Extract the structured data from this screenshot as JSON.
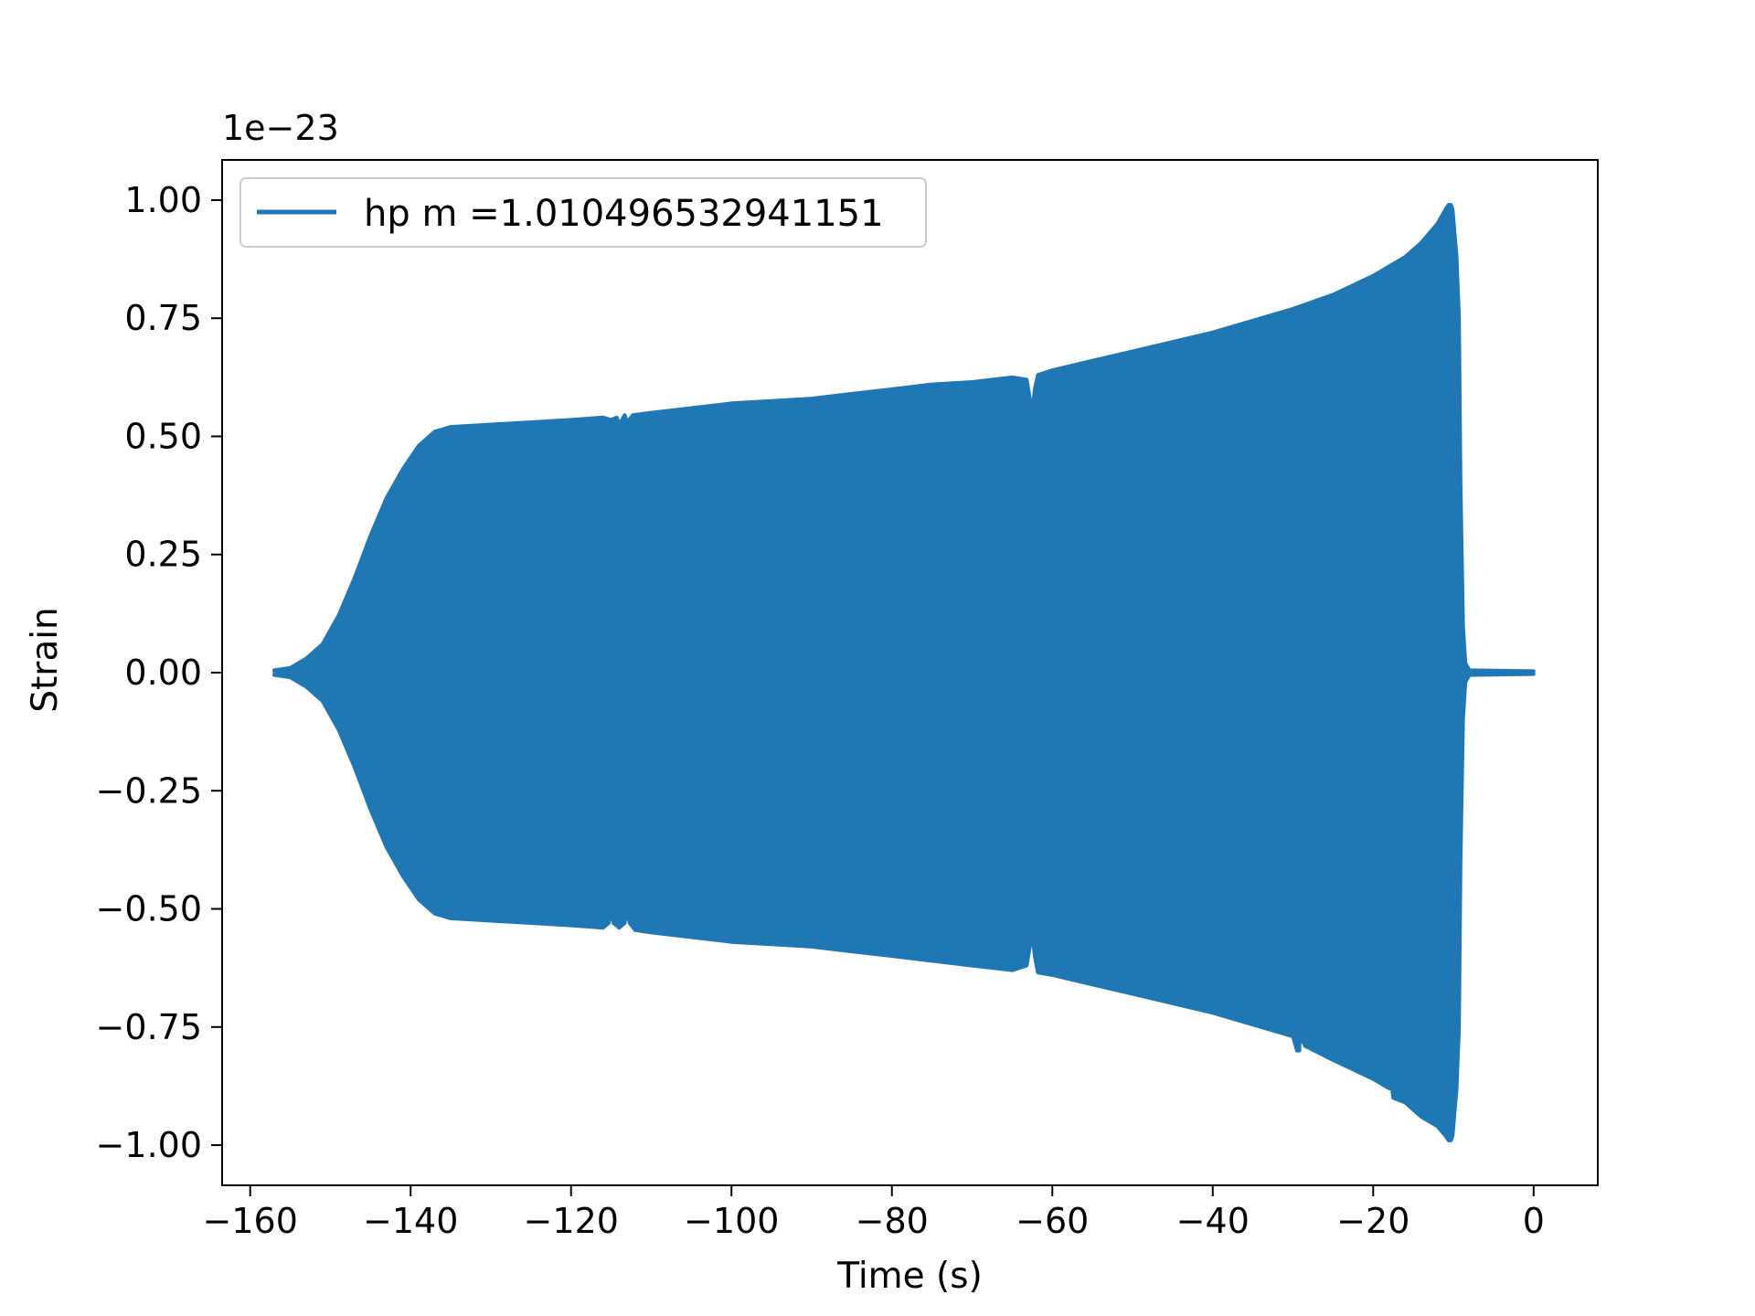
{
  "chart_data": {
    "type": "line",
    "title": "",
    "xlabel": "Time (s)",
    "ylabel": "Strain",
    "y_offset_label": "1e−23",
    "y_scale_factor": 1e-23,
    "xlim": [
      -163.5,
      8
    ],
    "ylim": [
      -1.085,
      1.085
    ],
    "x_ticks": [
      {
        "value": -160,
        "label": "−160"
      },
      {
        "value": -140,
        "label": "−140"
      },
      {
        "value": -120,
        "label": "−120"
      },
      {
        "value": -100,
        "label": "−100"
      },
      {
        "value": -80,
        "label": "−80"
      },
      {
        "value": -60,
        "label": "−60"
      },
      {
        "value": -40,
        "label": "−40"
      },
      {
        "value": -20,
        "label": "−20"
      },
      {
        "value": 0,
        "label": "0"
      }
    ],
    "y_ticks": [
      {
        "value": 1.0,
        "label": "1.00"
      },
      {
        "value": 0.75,
        "label": "0.75"
      },
      {
        "value": 0.5,
        "label": "0.50"
      },
      {
        "value": 0.25,
        "label": "0.25"
      },
      {
        "value": 0.0,
        "label": "0.00"
      },
      {
        "value": -0.25,
        "label": "−0.25"
      },
      {
        "value": -0.5,
        "label": "−0.50"
      },
      {
        "value": -0.75,
        "label": "−0.75"
      },
      {
        "value": -1.0,
        "label": "−1.00"
      }
    ],
    "grid": false,
    "legend": {
      "placement": "upper-left"
    },
    "series": [
      {
        "name": "hp m =1.010496532941151",
        "color": "#1f77b4",
        "envelope_upper": {
          "x": [
            -157,
            -155,
            -153,
            -151,
            -149,
            -147,
            -145,
            -143,
            -141,
            -139,
            -137,
            -135,
            -130,
            -125,
            -120,
            -116,
            -115,
            -114.3,
            -114,
            -113.3,
            -113,
            -112.3,
            -110,
            -105,
            -100,
            -95,
            -90,
            -85,
            -80,
            -75,
            -70,
            -65,
            -63.2,
            -62.8,
            -62.5,
            -62.2,
            -61.8,
            -60,
            -55,
            -50,
            -45,
            -40,
            -35,
            -30,
            -25,
            -20,
            -16,
            -14,
            -12,
            -11,
            -10.6,
            -10.3,
            -10.1,
            -9.6,
            -9.3,
            -9.1,
            -8.8,
            -8.5,
            -8,
            0
          ],
          "y": [
            0.005,
            0.01,
            0.03,
            0.06,
            0.12,
            0.2,
            0.29,
            0.37,
            0.43,
            0.48,
            0.51,
            0.52,
            0.525,
            0.53,
            0.535,
            0.54,
            0.535,
            0.54,
            0.525,
            0.545,
            0.53,
            0.545,
            0.55,
            0.56,
            0.57,
            0.575,
            0.58,
            0.59,
            0.6,
            0.61,
            0.615,
            0.625,
            0.62,
            0.58,
            0.55,
            0.6,
            0.63,
            0.64,
            0.66,
            0.68,
            0.7,
            0.72,
            0.745,
            0.77,
            0.8,
            0.84,
            0.88,
            0.91,
            0.95,
            0.98,
            0.99,
            0.99,
            0.98,
            0.88,
            0.75,
            0.4,
            0.1,
            0.02,
            0.005,
            0.003
          ]
        },
        "envelope_lower": {
          "x": [
            -157,
            -155,
            -153,
            -151,
            -149,
            -147,
            -145,
            -143,
            -141,
            -139,
            -137,
            -135,
            -130,
            -125,
            -120,
            -116,
            -115.3,
            -115,
            -114.7,
            -114,
            -113.3,
            -113,
            -112.7,
            -112,
            -110,
            -105,
            -100,
            -95,
            -90,
            -85,
            -80,
            -75,
            -70,
            -65,
            -63.2,
            -62.8,
            -62.5,
            -62.2,
            -61.8,
            -60,
            -55,
            -50,
            -45,
            -40,
            -35,
            -30,
            -29.5,
            -29.2,
            -29,
            -28.8,
            -28.5,
            -25,
            -20,
            -18,
            -17.8,
            -17.5,
            -16,
            -14,
            -12,
            -11,
            -10.6,
            -10.3,
            -10.1,
            -9.6,
            -9.3,
            -9.1,
            -8.8,
            -8.5,
            -8,
            0
          ],
          "y": [
            -0.005,
            -0.01,
            -0.03,
            -0.06,
            -0.12,
            -0.2,
            -0.29,
            -0.37,
            -0.43,
            -0.48,
            -0.51,
            -0.52,
            -0.525,
            -0.53,
            -0.535,
            -0.54,
            -0.53,
            -0.5,
            -0.53,
            -0.54,
            -0.53,
            -0.5,
            -0.53,
            -0.545,
            -0.55,
            -0.56,
            -0.57,
            -0.575,
            -0.58,
            -0.59,
            -0.6,
            -0.61,
            -0.62,
            -0.63,
            -0.62,
            -0.58,
            -0.55,
            -0.6,
            -0.635,
            -0.64,
            -0.66,
            -0.68,
            -0.7,
            -0.72,
            -0.745,
            -0.77,
            -0.8,
            -0.8,
            -0.6,
            -0.78,
            -0.79,
            -0.82,
            -0.86,
            -0.88,
            -0.86,
            -0.9,
            -0.91,
            -0.94,
            -0.96,
            -0.98,
            -0.99,
            -0.99,
            -0.98,
            -0.88,
            -0.75,
            -0.4,
            -0.1,
            -0.02,
            -0.005,
            -0.003
          ]
        }
      }
    ]
  }
}
